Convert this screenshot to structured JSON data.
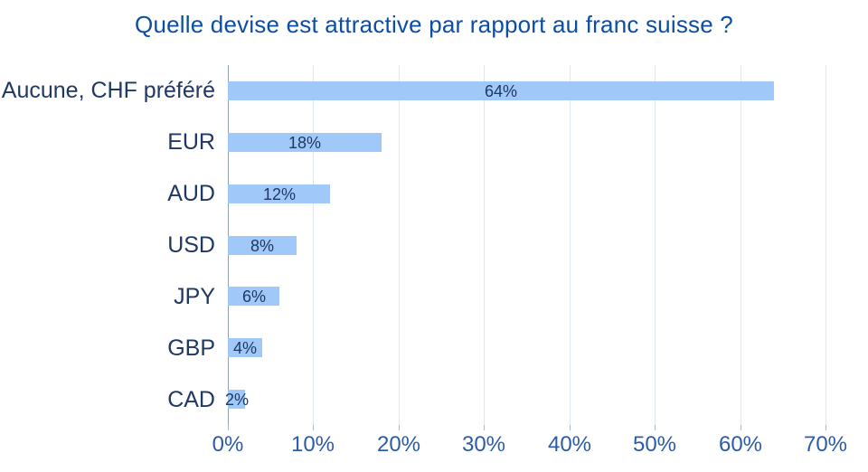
{
  "chart_data": {
    "type": "bar",
    "orientation": "horizontal",
    "title": "Quelle devise est attractive par rapport au franc suisse ?",
    "categories": [
      "Aucune, CHF préféré",
      "EUR",
      "AUD",
      "USD",
      "JPY",
      "GBP",
      "CAD"
    ],
    "values": [
      64,
      18,
      12,
      8,
      6,
      4,
      2
    ],
    "data_labels": [
      "64%",
      "18%",
      "12%",
      "8%",
      "6%",
      "4%",
      "2%"
    ],
    "x_tick_labels": [
      "0%",
      "10%",
      "20%",
      "30%",
      "40%",
      "50%",
      "60%",
      "70%"
    ],
    "x_tick_values": [
      0,
      10,
      20,
      30,
      40,
      50,
      60,
      70
    ],
    "xlim": [
      0,
      70
    ],
    "xlabel": "",
    "ylabel": "",
    "grid": "vertical-only",
    "legend": "none",
    "colors": {
      "bar_fill": "#a0c8f8",
      "title_text": "#0b4ea6",
      "category_text": "#1f3864",
      "data_label_text": "#1f3864",
      "tick_label_text": "#2b5ca9",
      "gridline": "#dde7f2",
      "axis_line": "#8fa2b3",
      "tick_mark": "#aabccb",
      "background": "#ffffff"
    }
  }
}
